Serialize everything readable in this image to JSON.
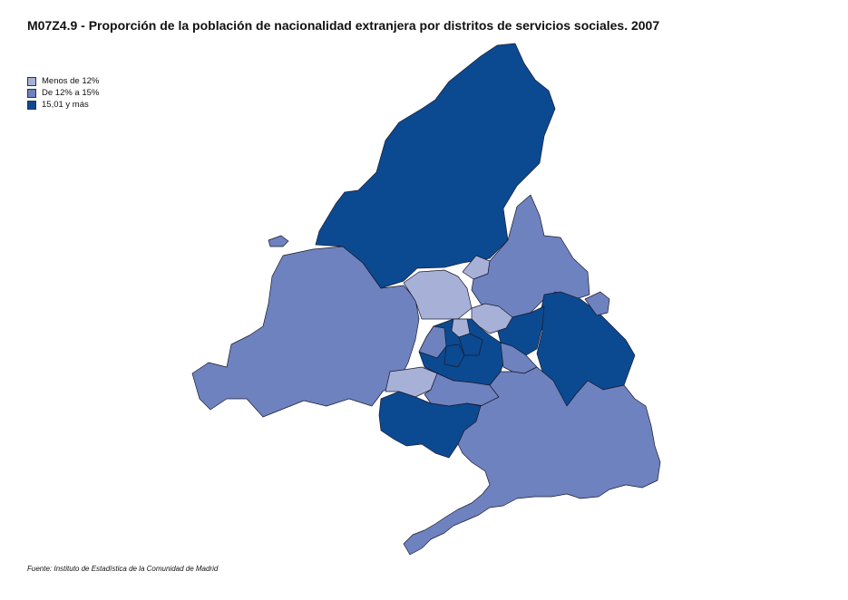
{
  "title": "M07Z4.9 - Proporción de la población de nacionalidad extranjera  por distritos de servicios sociales. 2007",
  "legend": {
    "items": [
      {
        "label": "Menos de 12%",
        "color": "#a7b1d8"
      },
      {
        "label": "De 12% a 15%",
        "color": "#6e82bf"
      },
      {
        "label": "15,01 y más",
        "color": "#0b4a91"
      }
    ]
  },
  "source": "Fuente: Instituto de Estadística de la Comunidad de Madrid",
  "colors": {
    "low": "#a7b1d8",
    "mid": "#6e82bf",
    "high": "#0b4a91"
  }
}
